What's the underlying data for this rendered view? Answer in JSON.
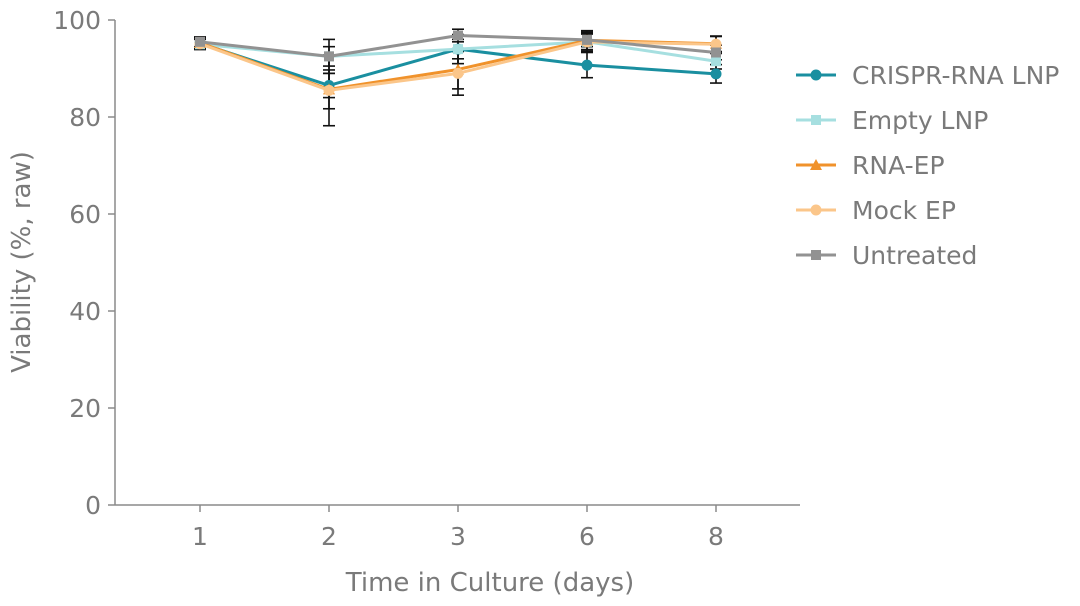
{
  "chart_data": {
    "type": "line",
    "title": "",
    "xlabel": "Time in Culture (days)",
    "ylabel": "Viability (%, raw)",
    "categories": [
      "1",
      "2",
      "3",
      "6",
      "8"
    ],
    "ylim": [
      0,
      100
    ],
    "yticks": [
      0,
      20,
      40,
      60,
      80,
      100
    ],
    "grid": false,
    "legend_position": "right",
    "series": [
      {
        "name": "CRISPR-RNA LNP",
        "color": "#1a8fa0",
        "marker": "circle",
        "values": [
          95.2,
          86.5,
          94.0,
          90.7,
          88.9
        ],
        "errors": [
          1.2,
          2.5,
          3.0,
          2.6,
          1.9
        ]
      },
      {
        "name": "Empty LNP",
        "color": "#a6dfe0",
        "marker": "square",
        "values": [
          95.0,
          92.5,
          94.0,
          95.5,
          91.5
        ],
        "errors": [
          1.0,
          2.0,
          2.0,
          1.6,
          1.6
        ]
      },
      {
        "name": "RNA-EP",
        "color": "#f0922b",
        "marker": "triangle",
        "values": [
          95.3,
          85.7,
          89.8,
          95.8,
          95.1
        ],
        "errors": [
          1.2,
          4.0,
          4.0,
          2.0,
          1.6
        ]
      },
      {
        "name": "Mock EP",
        "color": "#fbc68a",
        "marker": "circle",
        "values": [
          95.1,
          85.5,
          89.0,
          95.5,
          95.0
        ],
        "errors": [
          1.2,
          7.3,
          4.5,
          2.0,
          1.6
        ]
      },
      {
        "name": "Untreated",
        "color": "#929292",
        "marker": "square",
        "values": [
          95.5,
          92.5,
          96.8,
          95.9,
          93.3
        ],
        "errors": [
          1.0,
          3.5,
          1.3,
          1.4,
          1.5
        ]
      }
    ]
  }
}
